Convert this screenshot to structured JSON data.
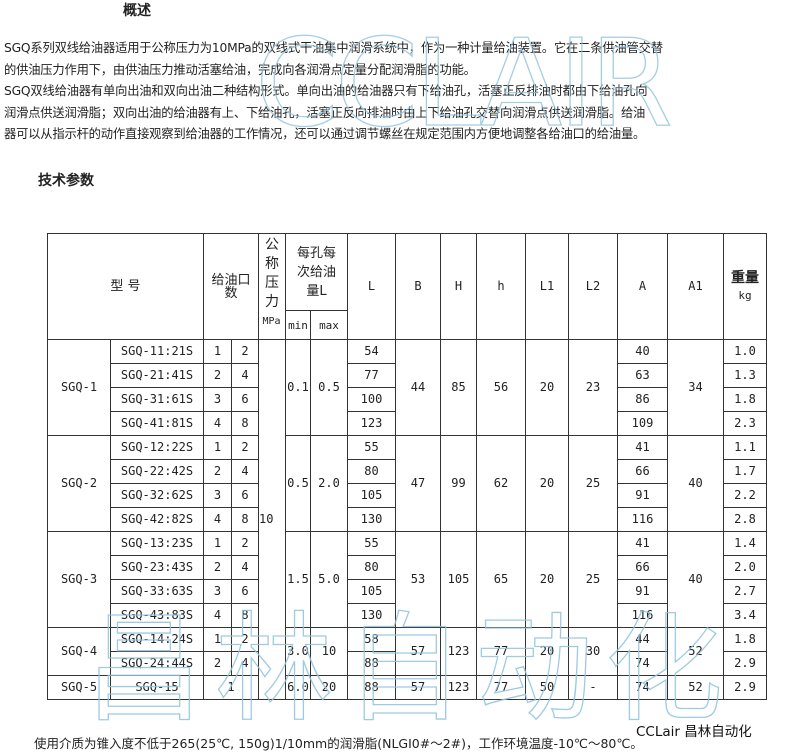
{
  "overview": {
    "heading": "概述",
    "paragraphs": [
      "SGQ系列双线给油器适用于公称压力为10MPa的双线式干油集中润滑系统中，作为一种计量给油装置。它在二条供油管交替",
      "的供油压力作用下，由供油压力推动活塞给油，完成向各润滑点定量分配润滑脂的功能。",
      "SGQ双线给油器有单向出油和双向出油二种结构形式。单向出油的给油器只有下给油孔，活塞正反排油时都由下给油孔向",
      "润滑点供送润滑脂；双向出油的给油器有上、下给油孔，活塞正反向排油时由上下给油孔交替向润滑点供送润滑脂。给油",
      "器可以从指示杆的动作直接观察到给油器的工作情况，还可以通过调节螺丝在规定范围内方便地调整各给油口的给油量。"
    ]
  },
  "params_heading": "技术参数",
  "table": {
    "headers": {
      "model": "型 号",
      "ports": "给油口数",
      "pressure": "公称压力",
      "pressure_unit": "MPa",
      "dose": "每孔每次给油量L",
      "min": "min",
      "max": "max",
      "L": "L",
      "B": "B",
      "H": "H",
      "h": "h",
      "L1": "L1",
      "L2": "L2",
      "A": "A",
      "A1": "A1",
      "weight": "重量",
      "weight_unit": "kg"
    },
    "pressure_value": "10",
    "groups": [
      {
        "name": "SGQ-1",
        "min": "0.1",
        "max": "0.5",
        "B": "44",
        "H": "85",
        "h": "56",
        "L1": "20",
        "L2": "23",
        "A1": "34",
        "rows": [
          {
            "model": "SGQ-11:21S",
            "p1": "1",
            "p2": "2",
            "L": "54",
            "A": "40",
            "w": "1.0"
          },
          {
            "model": "SGQ-21:41S",
            "p1": "2",
            "p2": "4",
            "L": "77",
            "A": "63",
            "w": "1.3"
          },
          {
            "model": "SGQ-31:61S",
            "p1": "3",
            "p2": "6",
            "L": "100",
            "A": "86",
            "w": "1.8"
          },
          {
            "model": "SGQ-41:81S",
            "p1": "4",
            "p2": "8",
            "L": "123",
            "A": "109",
            "w": "2.3"
          }
        ]
      },
      {
        "name": "SGQ-2",
        "min": "0.5",
        "max": "2.0",
        "B": "47",
        "H": "99",
        "h": "62",
        "L1": "20",
        "L2": "25",
        "A1": "40",
        "rows": [
          {
            "model": "SGQ-12:22S",
            "p1": "1",
            "p2": "2",
            "L": "55",
            "A": "41",
            "w": "1.1"
          },
          {
            "model": "SGQ-22:42S",
            "p1": "2",
            "p2": "4",
            "L": "80",
            "A": "66",
            "w": "1.7"
          },
          {
            "model": "SGQ-32:62S",
            "p1": "3",
            "p2": "6",
            "L": "105",
            "A": "91",
            "w": "2.2"
          },
          {
            "model": "SGQ-42:82S",
            "p1": "4",
            "p2": "8",
            "L": "130",
            "A": "116",
            "w": "2.8"
          }
        ]
      },
      {
        "name": "SGQ-3",
        "min": "1.5",
        "max": "5.0",
        "B": "53",
        "H": "105",
        "h": "65",
        "L1": "20",
        "L2": "25",
        "A1": "40",
        "rows": [
          {
            "model": "SGQ-13:23S",
            "p1": "1",
            "p2": "2",
            "L": "55",
            "A": "41",
            "w": "1.4"
          },
          {
            "model": "SGQ-23:43S",
            "p1": "2",
            "p2": "4",
            "L": "80",
            "A": "66",
            "w": "2.0"
          },
          {
            "model": "SGQ-33:63S",
            "p1": "3",
            "p2": "6",
            "L": "105",
            "A": "91",
            "w": "2.7"
          },
          {
            "model": "SGQ-43:83S",
            "p1": "4",
            "p2": "8",
            "L": "130",
            "A": "116",
            "w": "3.4"
          }
        ]
      },
      {
        "name": "SGQ-4",
        "min": "3.0",
        "max": "10",
        "B": "57",
        "H": "123",
        "h": "77",
        "L1": "20",
        "L2": "30",
        "A1": "52",
        "rows": [
          {
            "model": "SGQ-14:24S",
            "p1": "1",
            "p2": "2",
            "L": "58",
            "A": "44",
            "w": "1.8"
          },
          {
            "model": "SGQ-24:44S",
            "p1": "2",
            "p2": "4",
            "L": "88",
            "A": "74",
            "w": "2.9"
          }
        ]
      },
      {
        "name": "SGQ-5",
        "min": "6.0",
        "max": "20",
        "B": "57",
        "H": "123",
        "h": "77",
        "L1": "50",
        "L2": "-",
        "A1": "52",
        "rows": [
          {
            "model": "SGQ-15",
            "ports": "1",
            "L": "88",
            "A": "74",
            "w": "2.9"
          }
        ]
      }
    ]
  },
  "note": "使用介质为锥入度不低于265(25℃, 150g)1/10mm的润滑脂(NLGI0#～2#)，工作环境温度-10℃～80℃。",
  "brand": "CCLair 昌林自动化",
  "watermark": {
    "top": "CCLAIR",
    "bottom": "昌林自动化",
    "color": "#8fc3dc"
  }
}
